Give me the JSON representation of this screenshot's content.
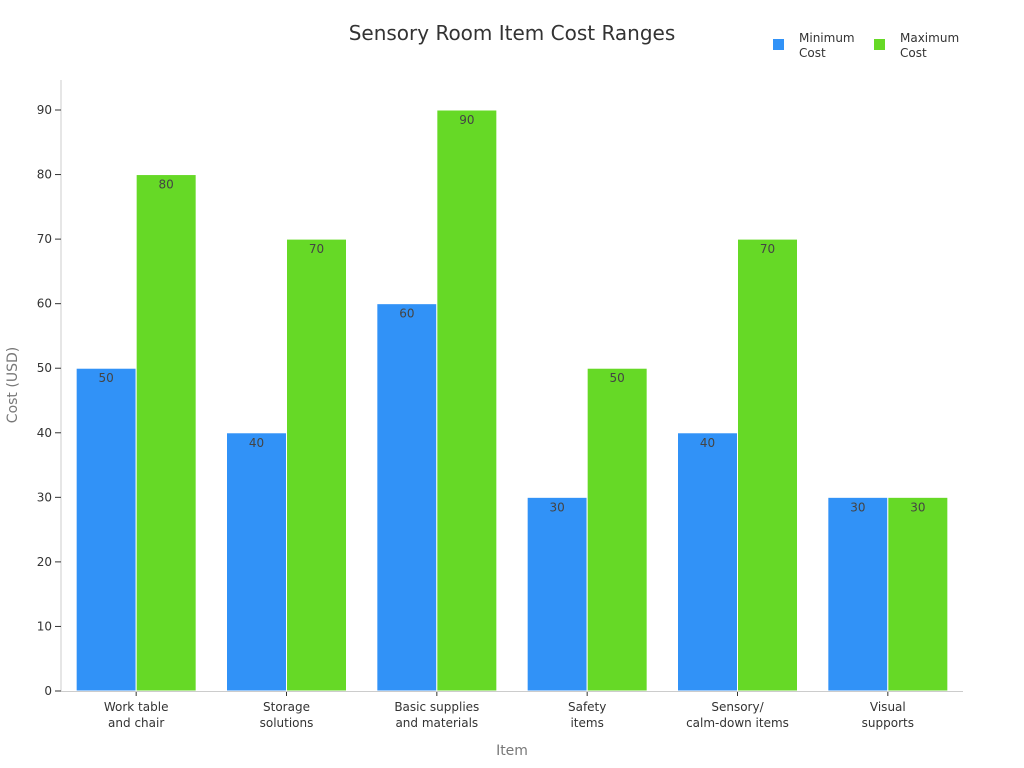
{
  "chart_data": {
    "type": "bar",
    "title": "Sensory Room Item Cost Ranges",
    "xlabel": "Item",
    "ylabel": "Cost (USD)",
    "ylim": [
      0,
      90
    ],
    "yticks": [
      0,
      10,
      20,
      30,
      40,
      50,
      60,
      70,
      80,
      90
    ],
    "grid": false,
    "legend_position": "top-right",
    "categories": [
      [
        "Work table",
        "and chair"
      ],
      [
        "Storage",
        "solutions"
      ],
      [
        "Basic supplies",
        "and materials"
      ],
      [
        "Safety",
        "items"
      ],
      [
        "Sensory/",
        "calm-down items"
      ],
      [
        "Visual",
        "supports"
      ]
    ],
    "series": [
      {
        "name": [
          "Minimum",
          "Cost"
        ],
        "color": "#3192f7",
        "values": [
          50,
          40,
          60,
          30,
          40,
          30
        ]
      },
      {
        "name": [
          "Maximum",
          "Cost"
        ],
        "color": "#66d926",
        "values": [
          80,
          70,
          90,
          50,
          70,
          30
        ]
      }
    ]
  }
}
